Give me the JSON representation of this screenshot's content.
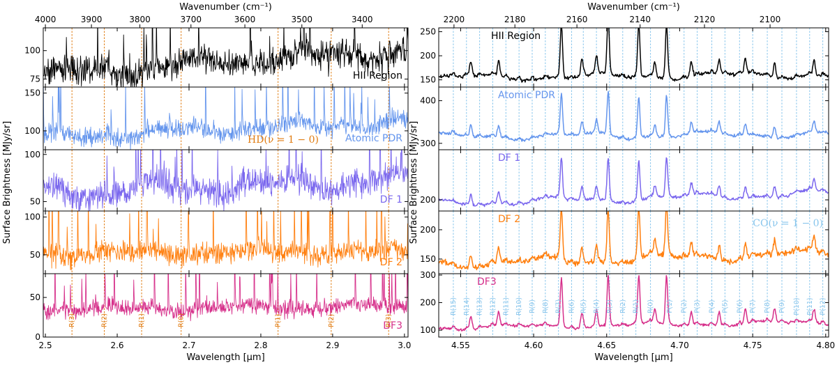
{
  "chart_data": [
    {
      "type": "line",
      "name": "left-panel",
      "xlabel": "Wavelength [μm]",
      "top_axis_label": "Wavenumber (cm⁻¹)",
      "ylabel": "Surface Brightness [MJy/sr]",
      "xlim": [
        2.497,
        3.005
      ],
      "x_ticks": [
        2.5,
        2.6,
        2.7,
        2.8,
        2.9,
        3.0
      ],
      "x_tick_labels": [
        "2.5",
        "2.6",
        "2.7",
        "2.8",
        "2.9",
        "3.0"
      ],
      "top_ticks": [
        4000,
        3900,
        3800,
        3700,
        3600,
        3500,
        3400
      ],
      "top_tick_labels": [
        "4000",
        "3900",
        "3800",
        "3700",
        "3600",
        "3500",
        "3400"
      ],
      "marker_color": "#e07b10",
      "marker_lines": [
        {
          "x": 2.537,
          "label": "R(3)"
        },
        {
          "x": 2.582,
          "label": "R(2)"
        },
        {
          "x": 2.634,
          "label": "R(1)"
        },
        {
          "x": 2.689,
          "label": "R(0)"
        },
        {
          "x": 2.824,
          "label": "P(1)"
        },
        {
          "x": 2.898,
          "label": "P(2)"
        },
        {
          "x": 2.978,
          "label": "P(3)"
        }
      ],
      "species_annotation": {
        "text": "HD(ν = 1 − 0)",
        "panel": 1
      },
      "panels": [
        {
          "series_name": "HII Region",
          "color": "#000000",
          "ylim": [
            68,
            120
          ],
          "yticks": [
            75,
            100
          ],
          "ytick_labels": [
            "75",
            "100"
          ],
          "baseline": 90,
          "noise": 6,
          "wobble": 4,
          "slope": 22,
          "spikes": 34
        },
        {
          "series_name": "Atomic PDR",
          "color": "#6495ed",
          "ylim": [
            75,
            158
          ],
          "yticks": [
            100,
            150
          ],
          "ytick_labels": [
            "100",
            "150"
          ],
          "baseline": 102,
          "noise": 6,
          "wobble": 5,
          "slope": 22,
          "spikes": 30
        },
        {
          "series_name": "DF 1",
          "color": "#7b68ee",
          "ylim": [
            40,
            105
          ],
          "yticks": [
            50,
            100
          ],
          "ytick_labels": [
            "50",
            "100"
          ],
          "baseline": 66,
          "noise": 7,
          "wobble": 6,
          "slope": 15,
          "spikes": 26
        },
        {
          "series_name": "DF 2",
          "color": "#ff7f0e",
          "ylim": [
            25,
            108
          ],
          "yticks": [
            50,
            100
          ],
          "ytick_labels": [
            "50",
            "100"
          ],
          "baseline": 53,
          "noise": 7,
          "wobble": 3,
          "slope": 3,
          "spikes": 40
        },
        {
          "series_name": "DF3",
          "color": "#d62f8a",
          "ylim": [
            0,
            80
          ],
          "yticks": [
            0,
            50
          ],
          "ytick_labels": [
            "0",
            "50"
          ],
          "baseline": 37,
          "noise": 5,
          "wobble": 3,
          "slope": 4,
          "spikes": 36
        }
      ]
    },
    {
      "type": "line",
      "name": "right-panel",
      "xlabel": "Wavelength [μm]",
      "top_axis_label": "Wavenumber (cm⁻¹)",
      "ylabel": "Surface Brightness [MJy/sr]",
      "xlim": [
        4.535,
        4.802
      ],
      "x_ticks": [
        4.55,
        4.6,
        4.65,
        4.7,
        4.75,
        4.8
      ],
      "x_tick_labels": [
        "4.55",
        "4.60",
        "4.65",
        "4.70",
        "4.75",
        "4.80"
      ],
      "top_ticks": [
        2200,
        2180,
        2160,
        2140,
        2120,
        2100
      ],
      "top_tick_labels": [
        "2200",
        "2180",
        "2160",
        "2140",
        "2120",
        "2100"
      ],
      "marker_color": "#87c5ec",
      "marker_lines": [
        {
          "x": 4.545,
          "label": "R(15)"
        },
        {
          "x": 4.554,
          "label": "R(14)"
        },
        {
          "x": 4.563,
          "label": "R(13)"
        },
        {
          "x": 4.572,
          "label": "R(12)"
        },
        {
          "x": 4.581,
          "label": "R(11)"
        },
        {
          "x": 4.59,
          "label": "R(10)"
        },
        {
          "x": 4.599,
          "label": "R(9)"
        },
        {
          "x": 4.608,
          "label": "R(8)"
        },
        {
          "x": 4.617,
          "label": "R(7)"
        },
        {
          "x": 4.626,
          "label": "R(6)"
        },
        {
          "x": 4.634,
          "label": "R(5)"
        },
        {
          "x": 4.643,
          "label": "R(4)"
        },
        {
          "x": 4.652,
          "label": "R(3)"
        },
        {
          "x": 4.661,
          "label": "R(2)"
        },
        {
          "x": 4.67,
          "label": "R(1)"
        },
        {
          "x": 4.68,
          "label": "R(0)"
        },
        {
          "x": 4.693,
          "label": "P(1)"
        },
        {
          "x": 4.703,
          "label": "P(2)"
        },
        {
          "x": 4.712,
          "label": "P(3)"
        },
        {
          "x": 4.722,
          "label": "P(4)"
        },
        {
          "x": 4.731,
          "label": "P(5)"
        },
        {
          "x": 4.741,
          "label": "P(6)"
        },
        {
          "x": 4.75,
          "label": "P(7)"
        },
        {
          "x": 4.76,
          "label": "P(8)"
        },
        {
          "x": 4.77,
          "label": "P(9)"
        },
        {
          "x": 4.78,
          "label": "P(10)"
        },
        {
          "x": 4.789,
          "label": "P(11)"
        },
        {
          "x": 4.798,
          "label": "P(12)"
        }
      ],
      "species_annotation": {
        "text": "CO(ν = 1 − 0)",
        "panel": 3
      },
      "panels": [
        {
          "series_name": "HII Region",
          "color": "#000000",
          "ylim": [
            135,
            258
          ],
          "yticks": [
            150,
            200,
            250
          ],
          "ytick_labels": [
            "150",
            "200",
            "250"
          ],
          "baseline": 157,
          "noise": 4,
          "wobble": 5,
          "slope": 6,
          "peak": 70
        },
        {
          "series_name": "Atomic PDR",
          "color": "#6495ed",
          "ylim": [
            285,
            432
          ],
          "yticks": [
            300,
            400
          ],
          "ytick_labels": [
            "300",
            "400"
          ],
          "baseline": 318,
          "noise": 4,
          "wobble": 6,
          "slope": 6,
          "peak": 60
        },
        {
          "series_name": "DF 1",
          "color": "#7b68ee",
          "ylim": [
            180,
            290
          ],
          "yticks": [
            200
          ],
          "ytick_labels": [
            "200"
          ],
          "baseline": 202,
          "noise": 3,
          "wobble": 5,
          "slope": 18,
          "peak": 45
        },
        {
          "series_name": "DF 2",
          "color": "#ff7f0e",
          "ylim": [
            125,
            232
          ],
          "yticks": [
            150,
            200
          ],
          "ytick_labels": [
            "150",
            "200"
          ],
          "baseline": 150,
          "noise": 5,
          "wobble": 6,
          "slope": 18,
          "peak": 55
        },
        {
          "series_name": "DF3",
          "color": "#d62f8a",
          "ylim": [
            75,
            305
          ],
          "yticks": [
            100,
            200,
            300
          ],
          "ytick_labels": [
            "100",
            "200",
            "300"
          ],
          "baseline": 118,
          "noise": 5,
          "wobble": 6,
          "slope": 20,
          "peak": 110
        }
      ]
    }
  ]
}
